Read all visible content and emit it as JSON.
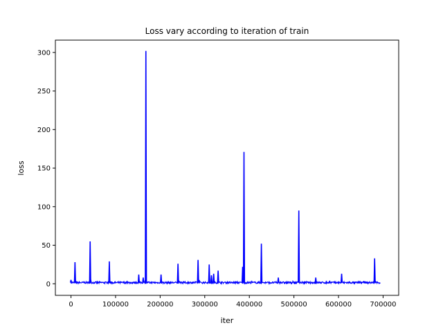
{
  "chart_data": {
    "type": "line",
    "title": "Loss vary according to iteration of train",
    "xlabel": "iter",
    "ylabel": "loss",
    "xlim": [
      -35000,
      735000
    ],
    "ylim": [
      -15,
      316
    ],
    "xticks": [
      0,
      100000,
      200000,
      300000,
      400000,
      500000,
      600000,
      700000
    ],
    "xtick_labels": [
      "0",
      "100000",
      "200000",
      "300000",
      "400000",
      "500000",
      "600000",
      "700000"
    ],
    "yticks": [
      0,
      50,
      100,
      150,
      200,
      250,
      300
    ],
    "ytick_labels": [
      "0",
      "50",
      "100",
      "150",
      "200",
      "250",
      "300"
    ],
    "grid": false,
    "series": [
      {
        "color": "#0000ff",
        "baseline": 1.5,
        "x_range": [
          0,
          694000
        ],
        "spikes": [
          {
            "x": 0,
            "y": 5
          },
          {
            "x": 9000,
            "y": 28
          },
          {
            "x": 43000,
            "y": 55
          },
          {
            "x": 86000,
            "y": 29
          },
          {
            "x": 152000,
            "y": 12
          },
          {
            "x": 162000,
            "y": 8
          },
          {
            "x": 168000,
            "y": 302
          },
          {
            "x": 202000,
            "y": 12
          },
          {
            "x": 240000,
            "y": 26
          },
          {
            "x": 285000,
            "y": 31
          },
          {
            "x": 310000,
            "y": 25
          },
          {
            "x": 315000,
            "y": 11
          },
          {
            "x": 320000,
            "y": 13
          },
          {
            "x": 330000,
            "y": 17
          },
          {
            "x": 385000,
            "y": 22
          },
          {
            "x": 388000,
            "y": 171
          },
          {
            "x": 427000,
            "y": 52
          },
          {
            "x": 465000,
            "y": 8
          },
          {
            "x": 511000,
            "y": 95
          },
          {
            "x": 549000,
            "y": 8
          },
          {
            "x": 607000,
            "y": 13
          },
          {
            "x": 681000,
            "y": 33
          }
        ]
      }
    ]
  }
}
